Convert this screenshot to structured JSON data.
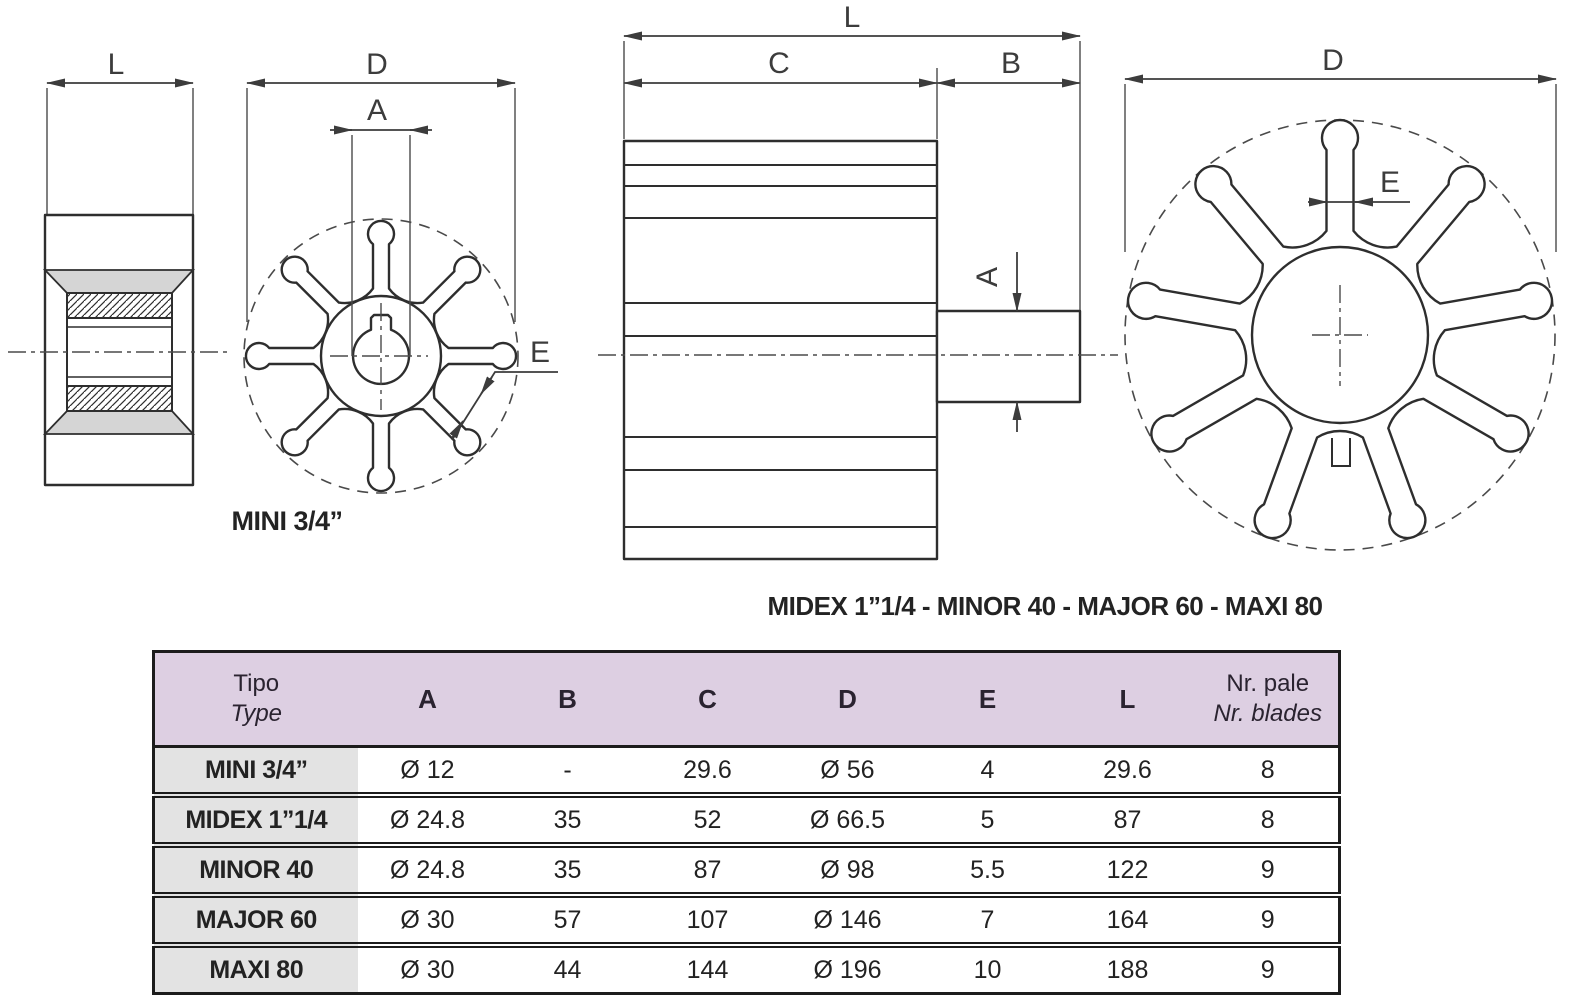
{
  "dims": {
    "L": "L",
    "D": "D",
    "A": "A",
    "B": "B",
    "C": "C",
    "E": "E"
  },
  "captions": {
    "left_model": "MINI 3/4”",
    "right_models": "MIDEX 1”1/4 - MINOR 40 - MAJOR 60 - MAXI 80"
  },
  "table": {
    "header": {
      "col0_line1": "Tipo",
      "col0_line2": "Type",
      "cols": [
        "A",
        "B",
        "C",
        "D",
        "E",
        "L"
      ],
      "last_line1": "Nr. pale",
      "last_line2": "Nr. blades"
    },
    "rows": [
      {
        "label": "MINI 3/4”",
        "cells": [
          "Ø 12",
          "-",
          "29.6",
          "Ø 56",
          "4",
          "29.6",
          "8"
        ]
      },
      {
        "label": "MIDEX 1”1/4",
        "cells": [
          "Ø 24.8",
          "35",
          "52",
          "Ø 66.5",
          "5",
          "87",
          "8"
        ]
      },
      {
        "label": "MINOR 40",
        "cells": [
          "Ø 24.8",
          "35",
          "87",
          "Ø 98",
          "5.5",
          "122",
          "9"
        ]
      },
      {
        "label": "MAJOR 60",
        "cells": [
          "Ø 30",
          "57",
          "107",
          "Ø 146",
          "7",
          "164",
          "9"
        ]
      },
      {
        "label": "MAXI 80",
        "cells": [
          "Ø 30",
          "44",
          "144",
          "Ø 196",
          "10",
          "188",
          "9"
        ]
      }
    ]
  },
  "colors": {
    "header_bg": "#ddcfe2",
    "row_label_bg": "#e3e3e3",
    "table_border": "#1c1c1c",
    "line": "#2e2e2e",
    "gray_fill": "#d5d5d5",
    "dim_text": "#3c3c3c"
  }
}
